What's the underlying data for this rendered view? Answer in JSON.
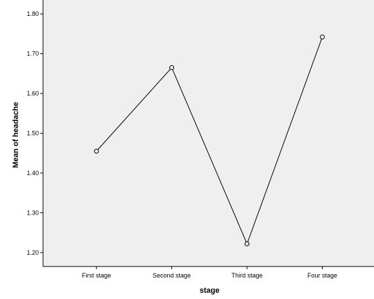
{
  "chart_data": {
    "type": "line",
    "title": "",
    "xlabel": "stage",
    "ylabel": "Mean of headache",
    "categories": [
      "First stage",
      "Second stage",
      "Third stage",
      "Four stage"
    ],
    "values": [
      1.455,
      1.665,
      1.222,
      1.742
    ],
    "ylim": [
      1.165,
      1.835
    ],
    "yticks": [
      1.2,
      1.3,
      1.4,
      1.5,
      1.6,
      1.7,
      1.8
    ],
    "ytick_labels": [
      "1.20",
      "1.30",
      "1.40",
      "1.50",
      "1.60",
      "1.70",
      "1.80"
    ],
    "markers": "open-circle",
    "grid": false,
    "colors": {
      "plot_background": "#efefef",
      "line": "#000000",
      "axis": "#000000"
    }
  }
}
